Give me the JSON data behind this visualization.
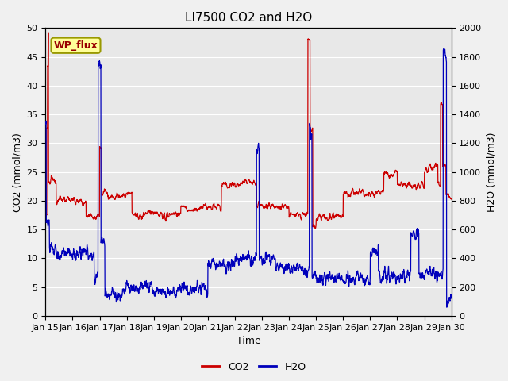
{
  "title": "LI7500 CO2 and H2O",
  "xlabel": "Time",
  "ylabel_left": "CO2 (mmol/m3)",
  "ylabel_right": "H2O (mmol/m3)",
  "xlim": [
    0,
    15
  ],
  "ylim_left": [
    0,
    50
  ],
  "ylim_right": [
    0,
    2000
  ],
  "yticks_left": [
    0,
    5,
    10,
    15,
    20,
    25,
    30,
    35,
    40,
    45,
    50
  ],
  "yticks_right": [
    0,
    200,
    400,
    600,
    800,
    1000,
    1200,
    1400,
    1600,
    1800,
    2000
  ],
  "xtick_positions": [
    0,
    1,
    2,
    3,
    4,
    5,
    6,
    7,
    8,
    9,
    10,
    11,
    12,
    13,
    14,
    15
  ],
  "xtick_labels": [
    "Jan 15",
    "Jan 16",
    "Jan 17",
    "Jan 18",
    "Jan 19",
    "Jan 20",
    "Jan 21",
    "Jan 22",
    "Jan 23",
    "Jan 24",
    "Jan 25",
    "Jan 26",
    "Jan 27",
    "Jan 28",
    "Jan 29",
    "Jan 30"
  ],
  "co2_color": "#cc0000",
  "h2o_color": "#0000bb",
  "bg_color": "#e8e8e8",
  "grid_color": "#ffffff",
  "annotation_text": "WP_flux",
  "annotation_bbox_fc": "#ffff99",
  "annotation_bbox_ec": "#999900",
  "annotation_text_color": "#990000",
  "legend_co2": "CO2",
  "legend_h2o": "H2O",
  "title_fontsize": 11,
  "axis_label_fontsize": 9,
  "tick_fontsize": 8,
  "figsize": [
    6.4,
    4.8
  ],
  "dpi": 100
}
